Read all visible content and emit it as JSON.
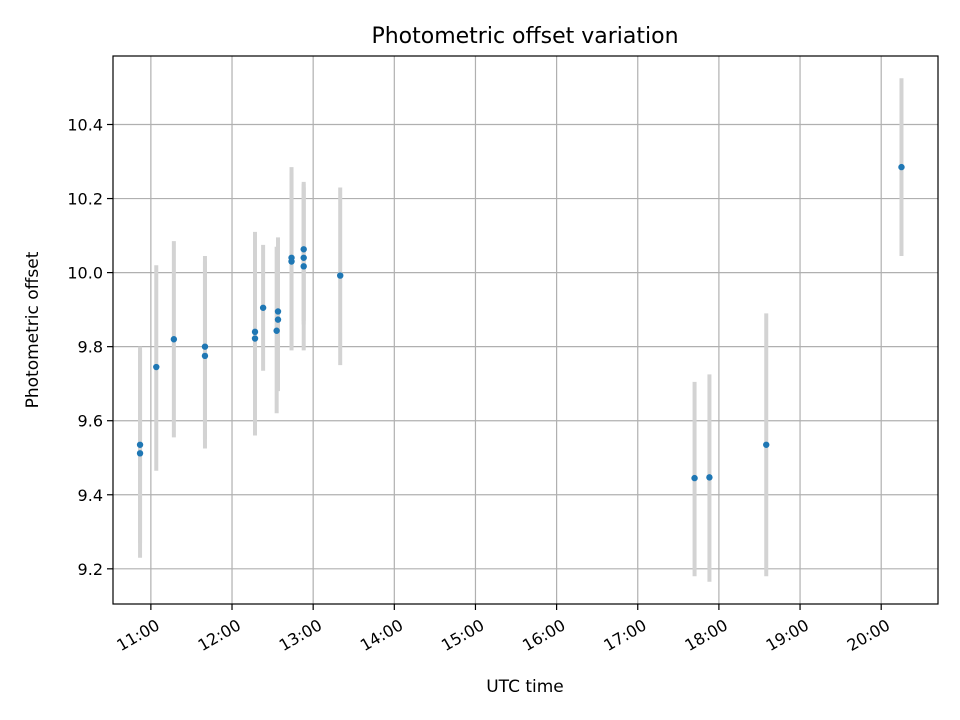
{
  "chart_data": {
    "type": "scatter",
    "title": "Photometric offset variation",
    "xlabel": "UTC time",
    "ylabel": "Photometric offset",
    "xlim": [
      "10:32",
      "20:42"
    ],
    "ylim": [
      9.105,
      10.585
    ],
    "xticks": [
      "11:00",
      "12:00",
      "13:00",
      "14:00",
      "15:00",
      "16:00",
      "17:00",
      "18:00",
      "19:00",
      "20:00"
    ],
    "yticks": [
      9.2,
      9.4,
      9.6,
      9.8,
      10.0,
      10.2,
      10.4
    ],
    "grid": true,
    "marker_color": "#1f77b4",
    "errorbar_color": "#d3d3d3",
    "series": [
      {
        "points": [
          {
            "x": "10:52",
            "y": 9.535,
            "lo": 9.27,
            "hi": 9.8
          },
          {
            "x": "10:52",
            "y": 9.512,
            "lo": 9.23,
            "hi": 9.79
          },
          {
            "x": "11:04",
            "y": 9.745,
            "lo": 9.465,
            "hi": 10.02
          },
          {
            "x": "11:17",
            "y": 9.82,
            "lo": 9.555,
            "hi": 10.085
          },
          {
            "x": "11:40",
            "y": 9.8,
            "lo": 9.55,
            "hi": 10.045
          },
          {
            "x": "11:40",
            "y": 9.775,
            "lo": 9.525,
            "hi": 10.03
          },
          {
            "x": "12:17",
            "y": 9.84,
            "lo": 9.57,
            "hi": 10.11
          },
          {
            "x": "12:17",
            "y": 9.822,
            "lo": 9.56,
            "hi": 10.09
          },
          {
            "x": "12:23",
            "y": 9.905,
            "lo": 9.735,
            "hi": 10.075
          },
          {
            "x": "12:34",
            "y": 9.895,
            "lo": 9.7,
            "hi": 10.095
          },
          {
            "x": "12:34",
            "y": 9.873,
            "lo": 9.68,
            "hi": 10.07
          },
          {
            "x": "12:33",
            "y": 9.843,
            "lo": 9.62,
            "hi": 10.07
          },
          {
            "x": "12:44",
            "y": 10.04,
            "lo": 9.8,
            "hi": 10.285
          },
          {
            "x": "12:44",
            "y": 10.03,
            "lo": 9.79,
            "hi": 10.27
          },
          {
            "x": "12:53",
            "y": 10.063,
            "lo": 9.87,
            "hi": 10.245
          },
          {
            "x": "12:53",
            "y": 10.04,
            "lo": 9.86,
            "hi": 10.23
          },
          {
            "x": "12:53",
            "y": 10.017,
            "lo": 9.79,
            "hi": 10.24
          },
          {
            "x": "13:20",
            "y": 9.992,
            "lo": 9.75,
            "hi": 10.23
          },
          {
            "x": "17:42",
            "y": 9.445,
            "lo": 9.18,
            "hi": 9.705
          },
          {
            "x": "17:53",
            "y": 9.447,
            "lo": 9.165,
            "hi": 9.725
          },
          {
            "x": "18:35",
            "y": 9.535,
            "lo": 9.18,
            "hi": 9.89
          },
          {
            "x": "20:15",
            "y": 10.285,
            "lo": 10.045,
            "hi": 10.525
          }
        ]
      }
    ]
  }
}
